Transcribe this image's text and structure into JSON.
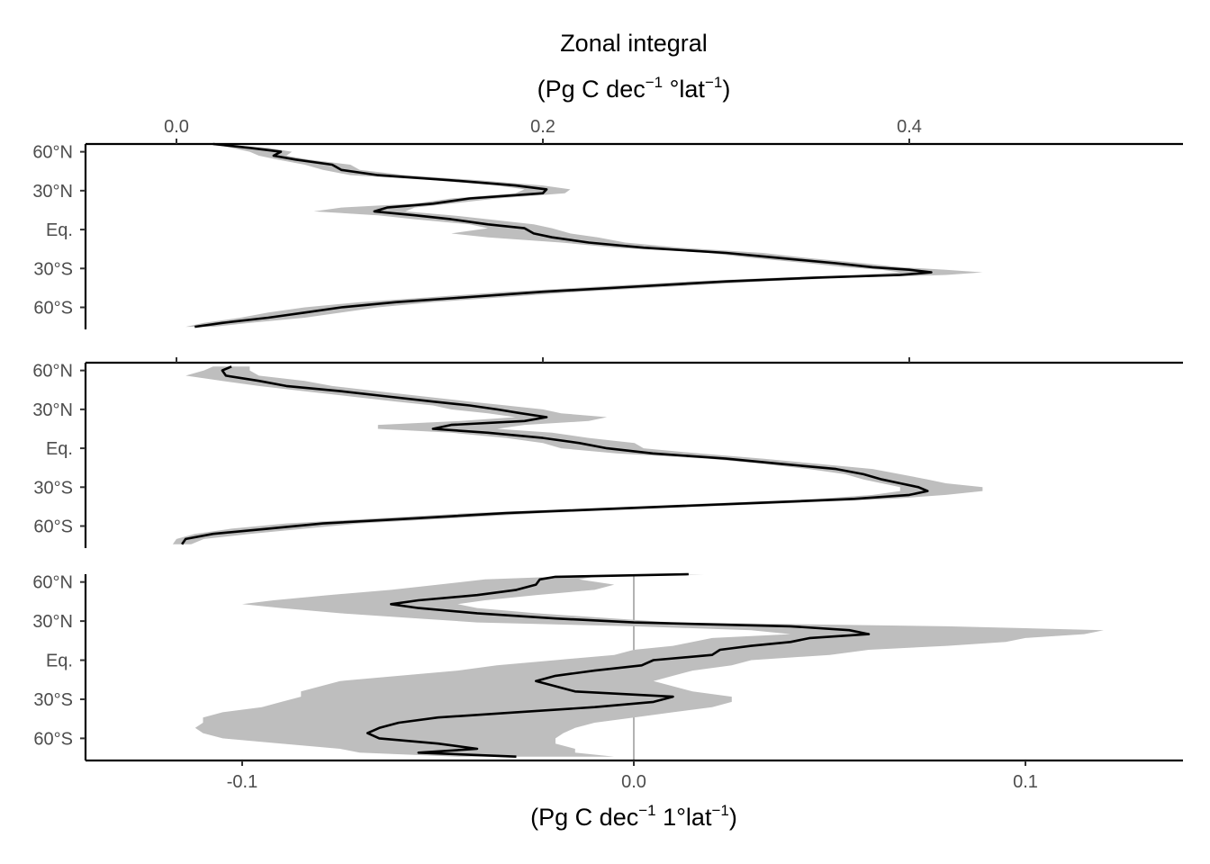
{
  "chart_data": {
    "type": "line",
    "title": "",
    "top_axis": {
      "title_line1": "Zonal integral",
      "title_line2_parts": [
        "(Pg C dec",
        "−1",
        " °lat",
        "−1",
        ")"
      ],
      "ticks": [
        0.0,
        0.2,
        0.4
      ],
      "tick_labels": [
        "0.0",
        "0.2",
        "0.4"
      ],
      "range": [
        0.0,
        0.5
      ]
    },
    "bottom_axis": {
      "title_parts": [
        "(Pg C dec",
        "−1",
        " 1°lat",
        "−1",
        ")"
      ],
      "ticks": [
        -0.1,
        0.0,
        0.1
      ],
      "tick_labels": [
        "-0.1",
        "0.0",
        "0.1"
      ],
      "range": [
        -0.14,
        0.14
      ],
      "zero_line": true
    },
    "y_axis": {
      "ticks": [
        60,
        30,
        0,
        -30,
        -60
      ],
      "tick_labels": [
        "60°N",
        "30°N",
        "Eq.",
        "30°S",
        "60°S"
      ],
      "range": [
        -77,
        66
      ]
    },
    "grid": false,
    "band_color": "#bebebe",
    "line_color": "#000000",
    "panels": [
      {
        "axis": "top",
        "profile": [
          [
            66,
            0.02,
            0.02,
            0.02
          ],
          [
            63,
            0.04,
            0.03,
            0.05
          ],
          [
            60,
            0.057,
            0.04,
            0.063
          ],
          [
            57,
            0.053,
            0.045,
            0.06
          ],
          [
            54,
            0.065,
            0.055,
            0.072
          ],
          [
            50,
            0.085,
            0.07,
            0.095
          ],
          [
            46,
            0.09,
            0.08,
            0.1
          ],
          [
            42,
            0.11,
            0.095,
            0.125
          ],
          [
            38,
            0.15,
            0.14,
            0.165
          ],
          [
            34,
            0.185,
            0.175,
            0.2
          ],
          [
            31,
            0.202,
            0.19,
            0.215
          ],
          [
            28,
            0.2,
            0.185,
            0.212
          ],
          [
            24,
            0.16,
            0.15,
            0.175
          ],
          [
            20,
            0.14,
            0.13,
            0.15
          ],
          [
            17,
            0.115,
            0.09,
            0.13
          ],
          [
            14,
            0.108,
            0.075,
            0.125
          ],
          [
            11,
            0.13,
            0.11,
            0.15
          ],
          [
            8,
            0.15,
            0.13,
            0.17
          ],
          [
            4,
            0.17,
            0.16,
            0.195
          ],
          [
            1,
            0.19,
            0.17,
            0.205
          ],
          [
            -3,
            0.195,
            0.15,
            0.215
          ],
          [
            -6,
            0.205,
            0.17,
            0.23
          ],
          [
            -10,
            0.225,
            0.21,
            0.245
          ],
          [
            -14,
            0.255,
            0.24,
            0.275
          ],
          [
            -18,
            0.3,
            0.29,
            0.32
          ],
          [
            -22,
            0.33,
            0.315,
            0.345
          ],
          [
            -26,
            0.36,
            0.345,
            0.375
          ],
          [
            -29,
            0.38,
            0.365,
            0.395
          ],
          [
            -31,
            0.4,
            0.385,
            0.42
          ],
          [
            -33,
            0.412,
            0.395,
            0.44
          ],
          [
            -35,
            0.395,
            0.37,
            0.42
          ],
          [
            -37,
            0.35,
            0.33,
            0.37
          ],
          [
            -40,
            0.3,
            0.28,
            0.32
          ],
          [
            -44,
            0.25,
            0.23,
            0.27
          ],
          [
            -48,
            0.2,
            0.18,
            0.22
          ],
          [
            -52,
            0.16,
            0.14,
            0.18
          ],
          [
            -56,
            0.12,
            0.1,
            0.14
          ],
          [
            -60,
            0.09,
            0.07,
            0.11
          ],
          [
            -64,
            0.07,
            0.05,
            0.09
          ],
          [
            -68,
            0.05,
            0.035,
            0.07
          ],
          [
            -72,
            0.025,
            0.015,
            0.04
          ],
          [
            -75,
            0.01,
            0.005,
            0.02
          ]
        ]
      },
      {
        "axis": "top",
        "profile": [
          [
            63,
            0.03,
            0.02,
            0.04
          ],
          [
            60,
            0.025,
            0.015,
            0.04
          ],
          [
            56,
            0.027,
            0.005,
            0.045
          ],
          [
            52,
            0.045,
            0.025,
            0.07
          ],
          [
            48,
            0.06,
            0.045,
            0.085
          ],
          [
            44,
            0.09,
            0.07,
            0.11
          ],
          [
            40,
            0.115,
            0.095,
            0.135
          ],
          [
            36,
            0.14,
            0.12,
            0.16
          ],
          [
            33,
            0.16,
            0.14,
            0.18
          ],
          [
            30,
            0.175,
            0.15,
            0.2
          ],
          [
            27,
            0.188,
            0.17,
            0.21
          ],
          [
            24,
            0.202,
            0.185,
            0.235
          ],
          [
            21,
            0.19,
            0.155,
            0.225
          ],
          [
            18,
            0.15,
            0.11,
            0.19
          ],
          [
            15,
            0.14,
            0.11,
            0.175
          ],
          [
            12,
            0.17,
            0.15,
            0.205
          ],
          [
            8,
            0.2,
            0.18,
            0.225
          ],
          [
            4,
            0.22,
            0.2,
            0.25
          ],
          [
            0,
            0.235,
            0.21,
            0.255
          ],
          [
            -4,
            0.26,
            0.24,
            0.285
          ],
          [
            -8,
            0.3,
            0.29,
            0.32
          ],
          [
            -12,
            0.33,
            0.32,
            0.35
          ],
          [
            -16,
            0.36,
            0.345,
            0.38
          ],
          [
            -20,
            0.375,
            0.365,
            0.395
          ],
          [
            -24,
            0.385,
            0.375,
            0.41
          ],
          [
            -27,
            0.395,
            0.385,
            0.42
          ],
          [
            -30,
            0.405,
            0.395,
            0.44
          ],
          [
            -33,
            0.41,
            0.395,
            0.44
          ],
          [
            -36,
            0.4,
            0.38,
            0.42
          ],
          [
            -39,
            0.37,
            0.35,
            0.39
          ],
          [
            -42,
            0.32,
            0.3,
            0.34
          ],
          [
            -46,
            0.25,
            0.23,
            0.27
          ],
          [
            -50,
            0.18,
            0.16,
            0.2
          ],
          [
            -54,
            0.13,
            0.11,
            0.15
          ],
          [
            -58,
            0.08,
            0.06,
            0.1
          ],
          [
            -62,
            0.05,
            0.03,
            0.07
          ],
          [
            -66,
            0.02,
            0.01,
            0.04
          ],
          [
            -70,
            0.005,
            0.0,
            0.015
          ],
          [
            -74,
            0.003,
            -0.002,
            0.008
          ]
        ]
      },
      {
        "axis": "bottom",
        "profile": [
          [
            66,
            0.014,
            0.014,
            0.018
          ],
          [
            64,
            -0.02,
            -0.02,
            -0.01
          ],
          [
            62,
            -0.024,
            -0.038,
            -0.014
          ],
          [
            58,
            -0.025,
            -0.05,
            -0.005
          ],
          [
            54,
            -0.03,
            -0.062,
            -0.01
          ],
          [
            50,
            -0.04,
            -0.078,
            -0.025
          ],
          [
            46,
            -0.055,
            -0.092,
            -0.038
          ],
          [
            43,
            -0.062,
            -0.1,
            -0.045
          ],
          [
            40,
            -0.055,
            -0.09,
            -0.04
          ],
          [
            36,
            -0.04,
            -0.075,
            -0.025
          ],
          [
            32,
            -0.02,
            -0.055,
            -0.005
          ],
          [
            29,
            0.0,
            -0.04,
            0.01
          ],
          [
            26,
            0.04,
            0.0,
            0.08
          ],
          [
            23,
            0.055,
            0.03,
            0.12
          ],
          [
            20,
            0.06,
            0.04,
            0.115
          ],
          [
            17,
            0.045,
            0.02,
            0.1
          ],
          [
            14,
            0.04,
            0.015,
            0.095
          ],
          [
            11,
            0.03,
            0.01,
            0.08
          ],
          [
            8,
            0.022,
            0.0,
            0.06
          ],
          [
            4,
            0.02,
            -0.005,
            0.05
          ],
          [
            0,
            0.005,
            -0.02,
            0.03
          ],
          [
            -4,
            0.002,
            -0.035,
            0.025
          ],
          [
            -8,
            -0.01,
            -0.045,
            0.015
          ],
          [
            -12,
            -0.02,
            -0.06,
            0.01
          ],
          [
            -16,
            -0.025,
            -0.075,
            0.005
          ],
          [
            -20,
            -0.02,
            -0.08,
            0.01
          ],
          [
            -24,
            -0.015,
            -0.085,
            0.015
          ],
          [
            -28,
            0.01,
            -0.085,
            0.025
          ],
          [
            -32,
            0.005,
            -0.09,
            0.025
          ],
          [
            -36,
            -0.01,
            -0.095,
            0.02
          ],
          [
            -40,
            -0.03,
            -0.105,
            0.01
          ],
          [
            -44,
            -0.05,
            -0.11,
            0.0
          ],
          [
            -48,
            -0.06,
            -0.11,
            -0.01
          ],
          [
            -52,
            -0.065,
            -0.112,
            -0.015
          ],
          [
            -56,
            -0.068,
            -0.11,
            -0.018
          ],
          [
            -60,
            -0.065,
            -0.105,
            -0.02
          ],
          [
            -64,
            -0.05,
            -0.09,
            -0.02
          ],
          [
            -68,
            -0.04,
            -0.075,
            -0.015
          ],
          [
            -71,
            -0.055,
            -0.07,
            -0.015
          ],
          [
            -74,
            -0.03,
            -0.045,
            -0.005
          ]
        ]
      }
    ]
  }
}
